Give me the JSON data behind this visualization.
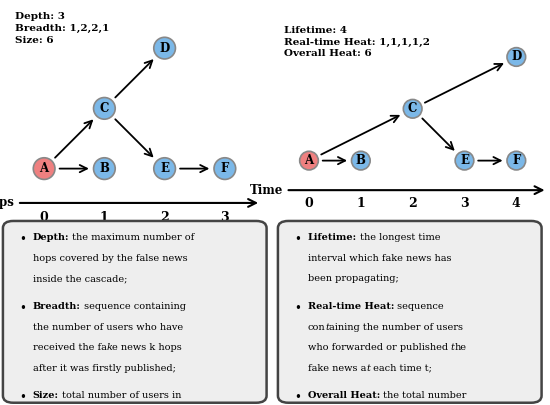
{
  "left_title_lines": [
    "Depth: 3",
    "Breadth: 1,2,2,1",
    "Size: 6"
  ],
  "right_title_lines": [
    "Lifetime: 4",
    "Real-time Heat: 1,1,1,1,2",
    "Overall Heat: 6"
  ],
  "left_xlabel": "Hops",
  "right_xlabel": "Time",
  "left_xticks": [
    0,
    1,
    2,
    3
  ],
  "right_xticks": [
    0,
    1,
    2,
    3,
    4
  ],
  "node_color_source": "#EF8080",
  "node_color_other": "#7BB8E8",
  "node_edge_color": "#888888",
  "box_bg_color": "#eeeeee",
  "box_edge_color": "#444444",
  "left_nodes_x": {
    "A": 0,
    "B": 1,
    "C": 1,
    "D": 2,
    "E": 2,
    "F": 3
  },
  "left_nodes_y": {
    "A": 0,
    "B": 0,
    "C": 1,
    "D": 2,
    "E": 0,
    "F": 0
  },
  "left_edges": [
    [
      "A",
      "C"
    ],
    [
      "A",
      "B"
    ],
    [
      "C",
      "D"
    ],
    [
      "C",
      "E"
    ],
    [
      "E",
      "F"
    ]
  ],
  "right_nodes_x": {
    "A": 0,
    "B": 1,
    "C": 2,
    "D": 4,
    "E": 3,
    "F": 4
  },
  "right_nodes_y": {
    "A": 0,
    "B": 0,
    "C": 1,
    "D": 2,
    "E": 0,
    "F": 0
  },
  "right_edges": [
    [
      "A",
      "C"
    ],
    [
      "A",
      "B"
    ],
    [
      "C",
      "D"
    ],
    [
      "C",
      "E"
    ],
    [
      "E",
      "F"
    ]
  ]
}
